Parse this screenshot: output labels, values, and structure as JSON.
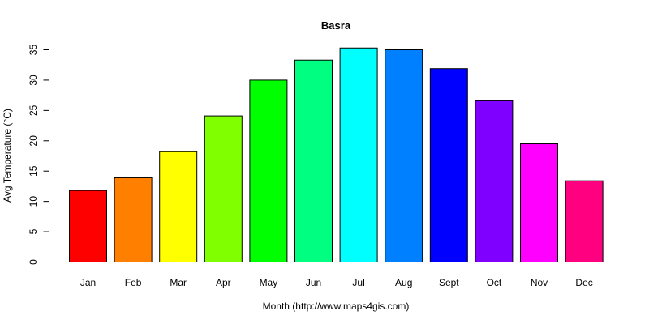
{
  "chart_data": {
    "type": "bar",
    "title": "Basra",
    "xlabel": "Month (http://www.maps4gis.com)",
    "ylabel": "Avg Temperature (°C)",
    "categories": [
      "Jan",
      "Feb",
      "Mar",
      "Apr",
      "May",
      "Jun",
      "Jul",
      "Aug",
      "Sept",
      "Oct",
      "Nov",
      "Dec"
    ],
    "values": [
      11.8,
      13.9,
      18.2,
      24.1,
      30.0,
      33.3,
      35.3,
      35.0,
      31.9,
      26.6,
      19.5,
      13.4
    ],
    "colors": [
      "#FF0000",
      "#FF8000",
      "#FFFF00",
      "#80FF00",
      "#00FF00",
      "#00FF80",
      "#00FFFF",
      "#0080FF",
      "#0000FF",
      "#8000FF",
      "#FF00FF",
      "#FF0080"
    ],
    "yticks": [
      0,
      5,
      10,
      15,
      20,
      25,
      30,
      35
    ],
    "ylim": [
      0,
      35
    ],
    "grid": false,
    "legend": "none"
  }
}
